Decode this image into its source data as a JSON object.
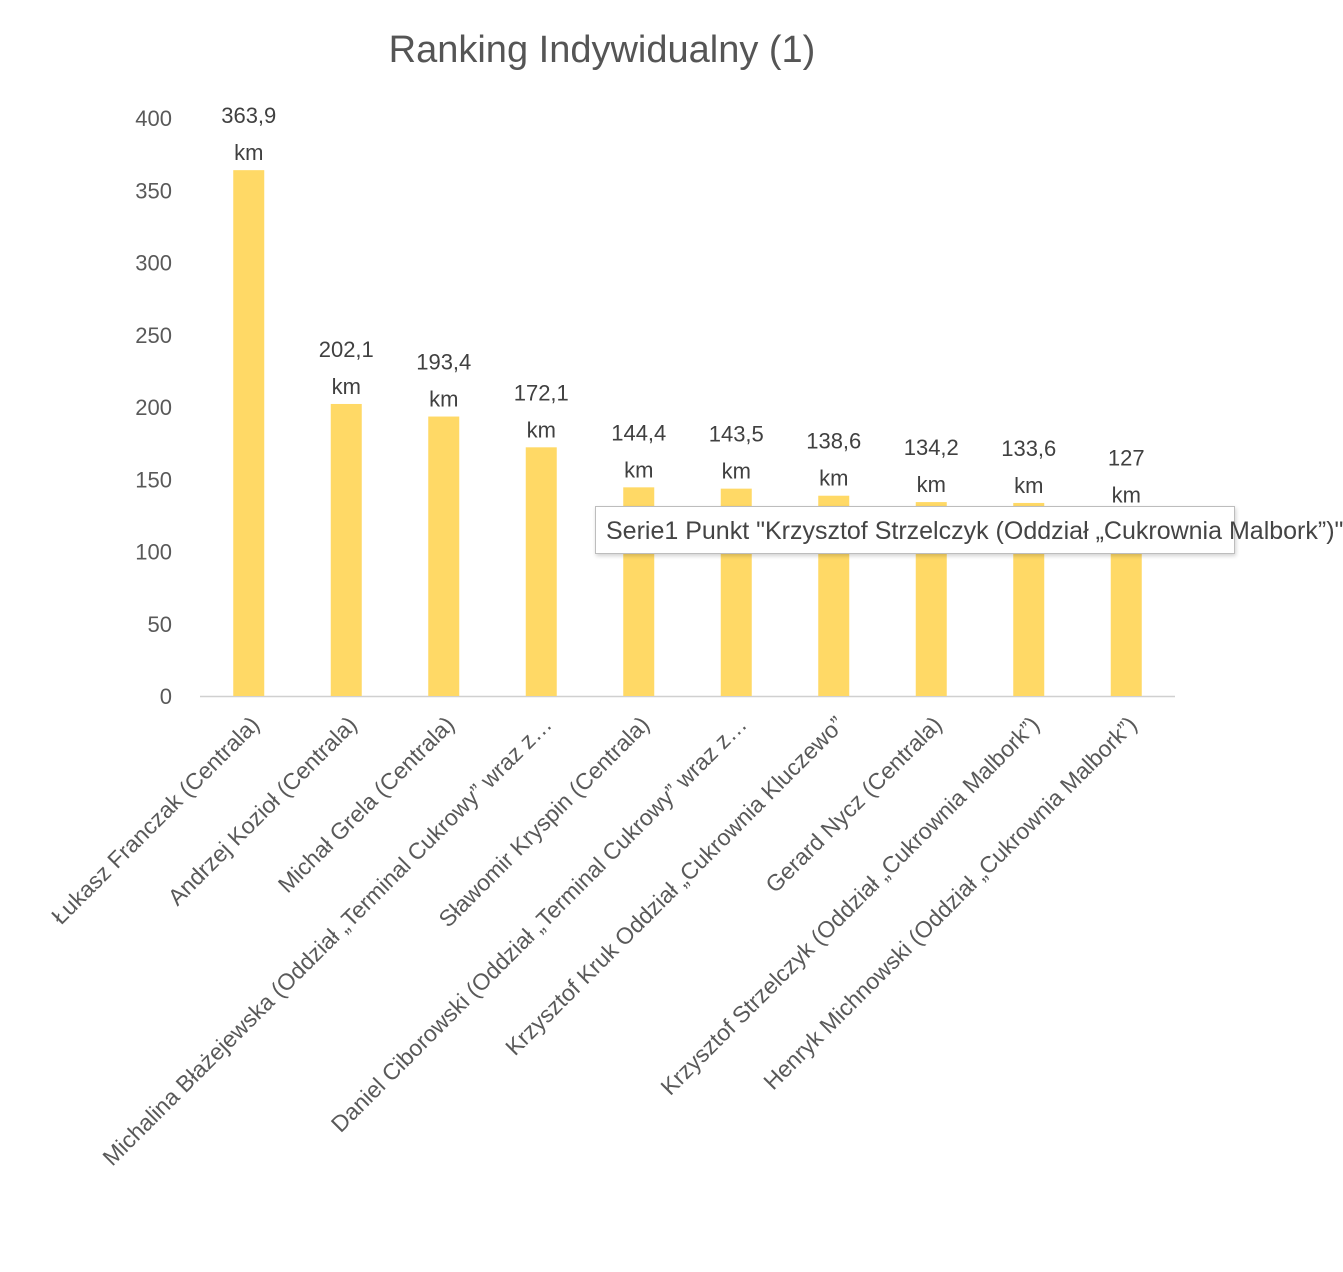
{
  "chart_data": {
    "type": "bar",
    "title": "Ranking Indywidualny (1)",
    "categories": [
      "Łukasz Franczak (Centrala)",
      "Andrzej Kozioł (Centrala)",
      "Michał Grela (Centrala)",
      "Michalina Błażejewska (Oddział „Terminal Cukrowy” wraz z…",
      "Sławomir Kryspin (Centrala)",
      "Daniel Ciborowski (Oddział „Terminal Cukrowy” wraz z…",
      "Krzysztof Kruk Oddział „Cukrownia Kluczewo”",
      "Gerard Nycz (Centrala)",
      "Krzysztof Strzelczyk (Oddział „Cukrownia Malbork”)",
      "Henryk Michnowski (Oddział „Cukrownia Malbork”)"
    ],
    "values": [
      363.9,
      202.1,
      193.4,
      172.1,
      144.4,
      143.5,
      138.6,
      134.2,
      133.6,
      127
    ],
    "data_labels": [
      [
        "363,9",
        "km"
      ],
      [
        "202,1",
        "km"
      ],
      [
        "193,4",
        "km"
      ],
      [
        "172,1",
        "km"
      ],
      [
        "144,4",
        "km"
      ],
      [
        "143,5",
        "km"
      ],
      [
        "138,6",
        "km"
      ],
      [
        "134,2",
        "km"
      ],
      [
        "133,6",
        "km"
      ],
      [
        "127",
        "km"
      ]
    ],
    "yticks": [
      "0",
      "50",
      "100",
      "150",
      "200",
      "250",
      "300",
      "350",
      "400"
    ],
    "ylim": [
      0,
      400
    ],
    "bar_color": "#FFD966",
    "grid": false,
    "legend": "none"
  },
  "tooltip": {
    "text": "Serie1 Punkt \"Krzysztof Strzelczyk (Oddział „Cukrownia Malbork”)\""
  }
}
